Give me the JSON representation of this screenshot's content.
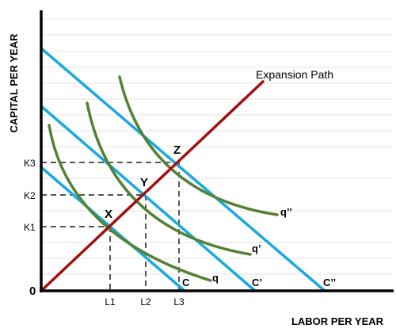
{
  "axes": {
    "y_title": "CAPITAL PER YEAR",
    "x_title": "LABOR PER YEAR",
    "origin": "0"
  },
  "labels": {
    "expansion": "Expansion Path",
    "x_ticks": [
      "L1",
      "L2",
      "L3"
    ],
    "y_ticks": [
      "K1",
      "K2",
      "K3"
    ],
    "points": [
      "X",
      "Y",
      "Z"
    ],
    "isoquants": [
      "q",
      "q’",
      "q’’"
    ],
    "isocosts": [
      "C",
      "C’",
      "C’’"
    ]
  },
  "colors": {
    "isocost": "#1aa9df",
    "isoquant": "#548235",
    "expansion": "#a50f0f",
    "guides": "#555555",
    "gridlines": "#e3e3e3"
  }
}
